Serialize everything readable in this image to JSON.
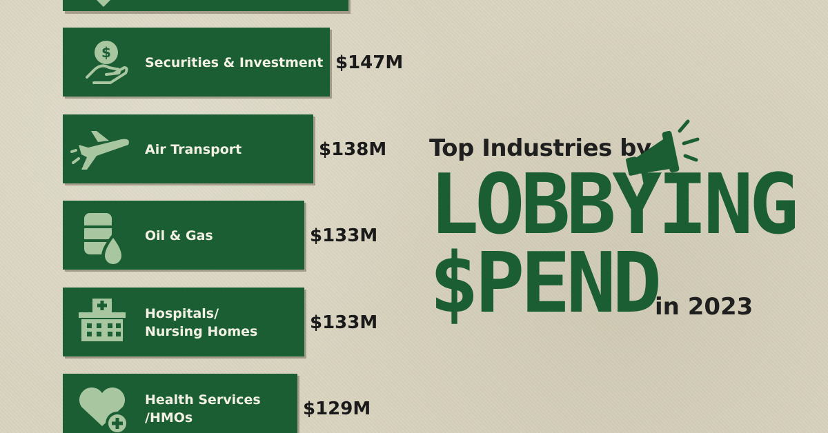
{
  "chart_data": {
    "type": "bar",
    "orientation": "horizontal",
    "title_line1": "Top Industries by",
    "title_line2": "LOBBYING",
    "title_line3": "$PEND",
    "title_suffix": "in 2023",
    "categories": [
      {
        "label_lines": [
          "Securities & Investment"
        ],
        "value": 147,
        "value_label": "$147M",
        "icon": "hand-dollar-coin-icon"
      },
      {
        "label_lines": [
          "Air Transport"
        ],
        "value": 138,
        "value_label": "$138M",
        "icon": "airplane-icon"
      },
      {
        "label_lines": [
          "Oil & Gas"
        ],
        "value": 133,
        "value_label": "$133M",
        "icon": "oil-barrel-drop-icon"
      },
      {
        "label_lines": [
          "Hospitals/",
          "Nursing Homes"
        ],
        "value": 133,
        "value_label": "$133M",
        "icon": "hospital-building-icon"
      },
      {
        "label_lines": [
          "Health Services",
          "/HMOs"
        ],
        "value": 129,
        "value_label": "$129M",
        "icon": "heart-plus-icon"
      }
    ],
    "partial_top_bar": {
      "icon": "partial-icon",
      "value_label": ""
    },
    "unit": "USD millions",
    "colors": {
      "bar": "#1b5e33",
      "icon": "#a8c7a1",
      "label": "#f3f1e4",
      "value": "#1a1a1a",
      "background": "#d9d4c0"
    }
  }
}
